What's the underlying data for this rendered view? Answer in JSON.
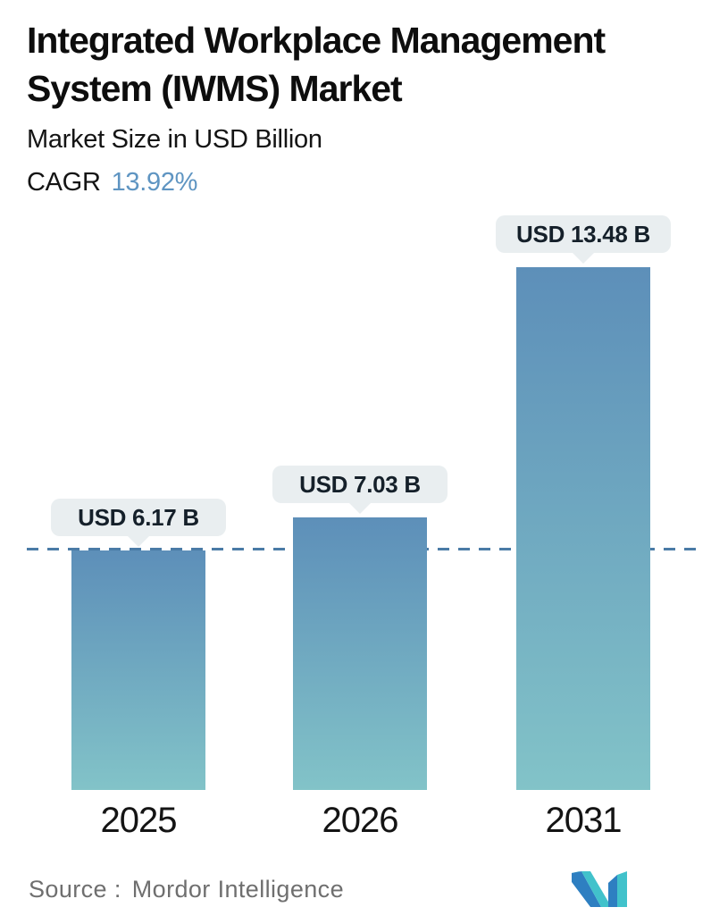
{
  "header": {
    "title": "Integrated Workplace Management System (IWMS) Market",
    "subtitle": "Market Size in USD Billion",
    "cagr_label": "CAGR",
    "cagr_value": "13.92%"
  },
  "chart_data": {
    "type": "bar",
    "title": "Integrated Workplace Management System (IWMS) Market",
    "ylabel": "Market Size in USD Billion",
    "categories": [
      "2025",
      "2026",
      "2031"
    ],
    "values": [
      6.17,
      7.03,
      13.48
    ],
    "value_labels": [
      "USD 6.17 B",
      "USD 7.03 B",
      "USD 13.48 B"
    ],
    "ylim": [
      0,
      13.48
    ],
    "grid": false,
    "legend": false,
    "bar_gradient": [
      "#5d8fb9",
      "#82c3c8"
    ],
    "reference_line": {
      "value": 6.17,
      "style": "dashed",
      "color": "#4a7ba6"
    }
  },
  "footer": {
    "source_label": "Source :",
    "source_value": "Mordor Intelligence"
  },
  "colors": {
    "cagr_value_blue": "#5f95c2",
    "bubble_bg": "#e9eef0",
    "title_text": "#0d0d0d",
    "source_text": "#6f6f6f",
    "logo_blue": "#2e7fc1",
    "logo_teal": "#41c2cb"
  }
}
